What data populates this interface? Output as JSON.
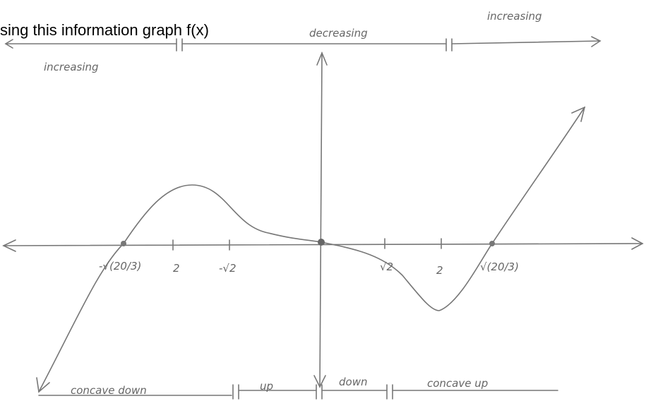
{
  "title": "sing this information graph f(x)",
  "monotonicity": {
    "left": "increasing",
    "middle": "decreasing",
    "right": "increasing"
  },
  "x_labels": [
    "-√(20/3)",
    "2",
    "-√2",
    "√2",
    "2",
    "√(20/3)"
  ],
  "concavity": [
    "concave down",
    "up",
    "down",
    "concave up"
  ]
}
